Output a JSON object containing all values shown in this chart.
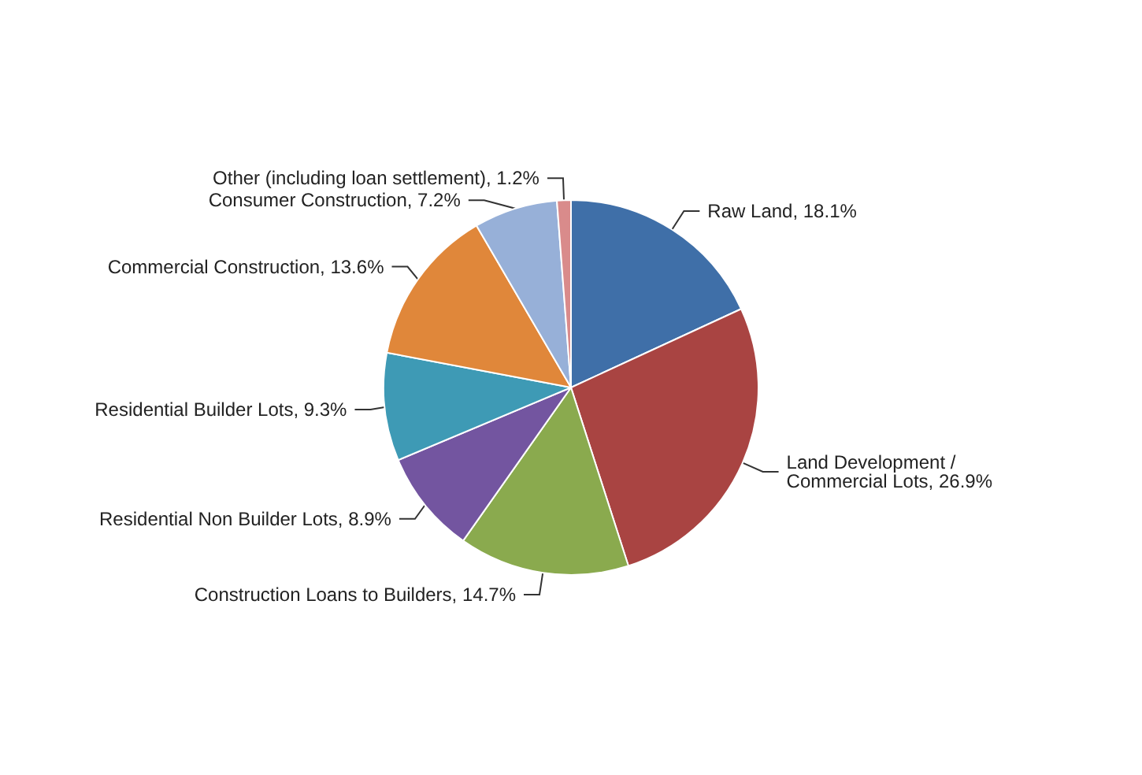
{
  "chart_data": {
    "type": "pie",
    "categories": [
      "Raw Land",
      "Land Development / Commercial Lots",
      "Construction Loans to Builders",
      "Residential Non Builder Lots",
      "Residential Builder Lots",
      "Commercial Construction",
      "Consumer Construction",
      "Other (including loan settlement)"
    ],
    "values": [
      18.1,
      26.9,
      14.7,
      8.9,
      9.3,
      13.6,
      7.2,
      1.2
    ],
    "value_labels": [
      "18.1%",
      "26.9%",
      "14.7%",
      "8.9%",
      "9.3%",
      "13.6%",
      "7.2%",
      "1.2%"
    ],
    "colors": [
      "#3f6fa8",
      "#a94442",
      "#8aaa4e",
      "#7355a0",
      "#3e9ab5",
      "#e0873a",
      "#97b0d8",
      "#d98b8b"
    ],
    "legend": false
  }
}
